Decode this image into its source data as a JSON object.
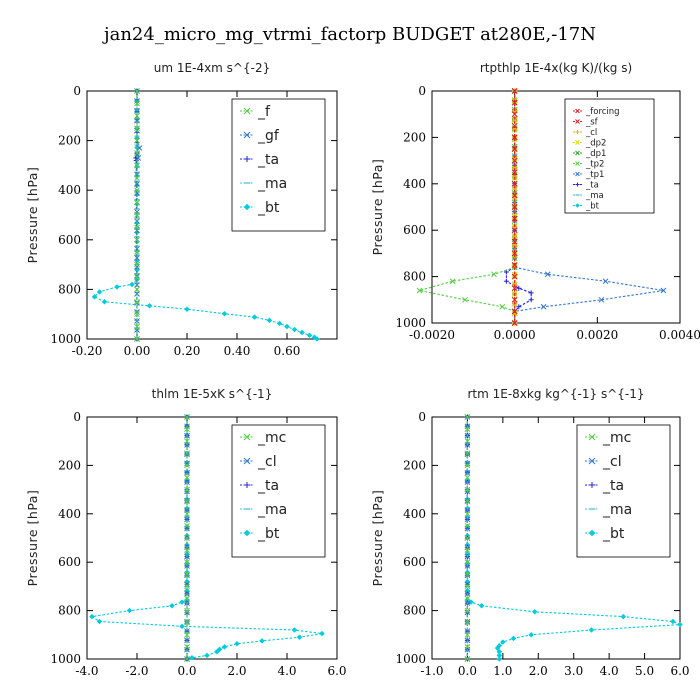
{
  "figure_title": "jan24_micro_mg_vtrmi_factorp  BUDGET at280E,-17N",
  "chart_data": [
    {
      "type": "line",
      "title": "um   1E-4xm  s^{-2}",
      "xlabel": "",
      "ylabel": "Pressure [hPa]",
      "xlim": [
        -0.2,
        0.8
      ],
      "ylim": [
        1000,
        0
      ],
      "xticks": [
        "-0.20",
        "0.00",
        "0.20",
        "0.40",
        "0.60"
      ],
      "xtick_values": [
        -0.2,
        0.0,
        0.2,
        0.4,
        0.6
      ],
      "yticks": [
        "0",
        "200",
        "400",
        "600",
        "800",
        "1000"
      ],
      "ytick_values": [
        0,
        200,
        400,
        600,
        800,
        1000
      ],
      "legend": "top-right",
      "series": [
        {
          "name": "_f",
          "color": "#55cc44",
          "marker": "x",
          "x": [
            0,
            0,
            0,
            0,
            0,
            0,
            0,
            0,
            0,
            0,
            0
          ],
          "y": [
            0,
            100,
            200,
            300,
            400,
            500,
            600,
            700,
            800,
            900,
            1000
          ]
        },
        {
          "name": "_gf",
          "color": "#3377cc",
          "marker": "x",
          "x": [
            0,
            0,
            0.01,
            0.005,
            0,
            0,
            0
          ],
          "y": [
            0,
            200,
            230,
            270,
            300,
            600,
            1000
          ]
        },
        {
          "name": "_ta",
          "color": "#2222dd",
          "marker": "plus",
          "x": [
            0.0,
            0.0,
            -0.005,
            -0.003,
            0.0
          ],
          "y": [
            0,
            250,
            270,
            280,
            1000
          ]
        },
        {
          "name": "_ma",
          "color": "#44bbdd",
          "marker": "dash",
          "x": [
            0,
            0,
            0,
            0
          ],
          "y": [
            0,
            400,
            700,
            1000
          ]
        },
        {
          "name": "_bt",
          "color": "#00ccdd",
          "marker": "diamond",
          "x": [
            0.0,
            0.0,
            -0.02,
            -0.08,
            -0.15,
            -0.17,
            -0.13,
            0.05,
            0.2,
            0.35,
            0.47,
            0.53,
            0.57,
            0.6,
            0.63,
            0.66,
            0.69,
            0.71,
            0.72
          ],
          "y": [
            0,
            760,
            780,
            790,
            810,
            830,
            850,
            866,
            880,
            898,
            912,
            925,
            937,
            950,
            962,
            974,
            985,
            993,
            1000
          ]
        }
      ]
    },
    {
      "type": "line",
      "title": "rtpthlp  1E-4x(kg K)/(kg s)",
      "xlabel": "",
      "ylabel": "Pressure [hPa]",
      "xlim": [
        -0.002,
        0.004
      ],
      "ylim": [
        1000,
        0
      ],
      "xticks": [
        "-0.0020",
        "0.0000",
        "0.0020",
        "0.0040"
      ],
      "xtick_values": [
        -0.002,
        0.0,
        0.002,
        0.004
      ],
      "yticks": [
        "0",
        "200",
        "400",
        "600",
        "800",
        "1000"
      ],
      "ytick_values": [
        0,
        200,
        400,
        600,
        800,
        1000
      ],
      "legend": "top-right",
      "series": [
        {
          "name": "_forcing",
          "color": "#dd2222",
          "marker": "x",
          "x": [
            0,
            0,
            0,
            0,
            0,
            0,
            0,
            0,
            0,
            0,
            0
          ],
          "y": [
            0,
            100,
            200,
            300,
            400,
            500,
            600,
            700,
            800,
            900,
            1000
          ]
        },
        {
          "name": "_sf",
          "color": "#cc2222",
          "marker": "x",
          "x": [
            0,
            0,
            0,
            0,
            0,
            0,
            0,
            0,
            0,
            0,
            0
          ],
          "y": [
            0,
            100,
            200,
            300,
            400,
            500,
            600,
            700,
            800,
            900,
            1000
          ]
        },
        {
          "name": "_cl",
          "color": "#ffaa00",
          "marker": "plus",
          "x": [
            0,
            0,
            0
          ],
          "y": [
            0,
            500,
            1000
          ]
        },
        {
          "name": "_dp2",
          "color": "#dddd00",
          "marker": "x",
          "x": [
            0,
            0,
            0
          ],
          "y": [
            0,
            500,
            1000
          ]
        },
        {
          "name": "_dp1",
          "color": "#22aa22",
          "marker": "x",
          "x": [
            0,
            0,
            0
          ],
          "y": [
            0,
            500,
            1000
          ]
        },
        {
          "name": "_tp2",
          "color": "#55cc44",
          "marker": "x",
          "x": [
            0.0,
            0.0,
            -0.0005,
            -0.0015,
            -0.0023,
            -0.0012,
            -0.0003,
            0.0,
            0.0
          ],
          "y": [
            0,
            760,
            790,
            820,
            860,
            900,
            930,
            950,
            1000
          ]
        },
        {
          "name": "_tp1",
          "color": "#3377cc",
          "marker": "x",
          "x": [
            0.0,
            0.0,
            0.0008,
            0.0022,
            0.0036,
            0.0021,
            0.0007,
            0.0,
            0.0
          ],
          "y": [
            0,
            760,
            790,
            820,
            860,
            900,
            930,
            950,
            1000
          ]
        },
        {
          "name": "_ta",
          "color": "#2222dd",
          "marker": "plus",
          "x": [
            0.0,
            0.0,
            -0.0002,
            -0.0002,
            0.0001,
            0.0004,
            0.0004,
            0.0001,
            0.0,
            0.0
          ],
          "y": [
            0,
            760,
            780,
            820,
            850,
            870,
            900,
            930,
            950,
            1000
          ]
        },
        {
          "name": "_ma",
          "color": "#44bbdd",
          "marker": "dash",
          "x": [
            0,
            0,
            0
          ],
          "y": [
            0,
            500,
            1000
          ]
        },
        {
          "name": "_bt",
          "color": "#00ccdd",
          "marker": "diamond",
          "x": [
            0,
            0,
            0
          ],
          "y": [
            0,
            500,
            1000
          ]
        }
      ]
    },
    {
      "type": "line",
      "title": "thlm   1E-5xK  s^{-1}",
      "xlabel": "",
      "ylabel": "Pressure [hPa]",
      "xlim": [
        -4.0,
        6.0
      ],
      "ylim": [
        1000,
        0
      ],
      "xticks": [
        "-4.0",
        "-2.0",
        "0.0",
        "2.0",
        "4.0",
        "6.0"
      ],
      "xtick_values": [
        -4.0,
        -2.0,
        0.0,
        2.0,
        4.0,
        6.0
      ],
      "yticks": [
        "0",
        "200",
        "400",
        "600",
        "800",
        "1000"
      ],
      "ytick_values": [
        0,
        200,
        400,
        600,
        800,
        1000
      ],
      "legend": "top-right",
      "series": [
        {
          "name": "_mc",
          "color": "#55cc44",
          "marker": "x",
          "x": [
            0,
            0,
            0,
            0,
            0,
            0,
            0,
            0,
            0,
            0,
            0
          ],
          "y": [
            0,
            100,
            200,
            300,
            400,
            500,
            600,
            700,
            800,
            900,
            1000
          ]
        },
        {
          "name": "_cl",
          "color": "#3377cc",
          "marker": "x",
          "x": [
            0,
            0,
            0
          ],
          "y": [
            0,
            500,
            1000
          ]
        },
        {
          "name": "_ta",
          "color": "#2222dd",
          "marker": "plus",
          "x": [
            0,
            0,
            0
          ],
          "y": [
            0,
            500,
            1000
          ]
        },
        {
          "name": "_ma",
          "color": "#44bbdd",
          "marker": "dash",
          "x": [
            0,
            0,
            0
          ],
          "y": [
            0,
            500,
            1000
          ]
        },
        {
          "name": "_bt",
          "color": "#00ccdd",
          "marker": "diamond",
          "x": [
            0.0,
            0.0,
            -0.2,
            -0.6,
            -2.3,
            -3.8,
            -3.5,
            -0.2,
            4.3,
            5.4,
            4.5,
            3.0,
            2.0,
            1.5,
            1.3,
            1.2,
            0.8,
            0.2,
            0.0
          ],
          "y": [
            0,
            755,
            765,
            780,
            800,
            825,
            845,
            865,
            880,
            895,
            910,
            925,
            937,
            950,
            960,
            970,
            985,
            995,
            1000
          ]
        }
      ]
    },
    {
      "type": "line",
      "title": "rtm   1E-8xkg  kg^{-1}  s^{-1}",
      "xlabel": "",
      "ylabel": "Pressure [hPa]",
      "xlim": [
        -1.0,
        6.0
      ],
      "ylim": [
        1000,
        0
      ],
      "xticks": [
        "-1.0",
        "0.0",
        "1.0",
        "2.0",
        "3.0",
        "4.0",
        "5.0",
        "6.0"
      ],
      "xtick_values": [
        -1.0,
        0.0,
        1.0,
        2.0,
        3.0,
        4.0,
        5.0,
        6.0
      ],
      "yticks": [
        "0",
        "200",
        "400",
        "600",
        "800",
        "1000"
      ],
      "ytick_values": [
        0,
        200,
        400,
        600,
        800,
        1000
      ],
      "legend": "top-right",
      "series": [
        {
          "name": "_mc",
          "color": "#55cc44",
          "marker": "x",
          "x": [
            0,
            0,
            0,
            0,
            0,
            0,
            0,
            0,
            0,
            0,
            0
          ],
          "y": [
            0,
            100,
            200,
            300,
            400,
            500,
            600,
            700,
            800,
            900,
            1000
          ]
        },
        {
          "name": "_cl",
          "color": "#3377cc",
          "marker": "x",
          "x": [
            0,
            0,
            0
          ],
          "y": [
            0,
            500,
            1000
          ]
        },
        {
          "name": "_ta",
          "color": "#2222dd",
          "marker": "plus",
          "x": [
            0,
            0,
            0
          ],
          "y": [
            0,
            500,
            1000
          ]
        },
        {
          "name": "_ma",
          "color": "#44bbdd",
          "marker": "dash",
          "x": [
            0,
            0,
            0
          ],
          "y": [
            0,
            500,
            1000
          ]
        },
        {
          "name": "_bt",
          "color": "#00ccdd",
          "marker": "diamond",
          "x": [
            0.0,
            0.0,
            0.1,
            0.4,
            1.9,
            4.4,
            5.8,
            6.0,
            3.5,
            1.8,
            1.3,
            1.0,
            0.9,
            0.85,
            0.9,
            0.9,
            0.9
          ],
          "y": [
            0,
            755,
            765,
            780,
            805,
            825,
            845,
            858,
            880,
            900,
            915,
            930,
            945,
            955,
            970,
            985,
            1000
          ]
        }
      ]
    }
  ]
}
